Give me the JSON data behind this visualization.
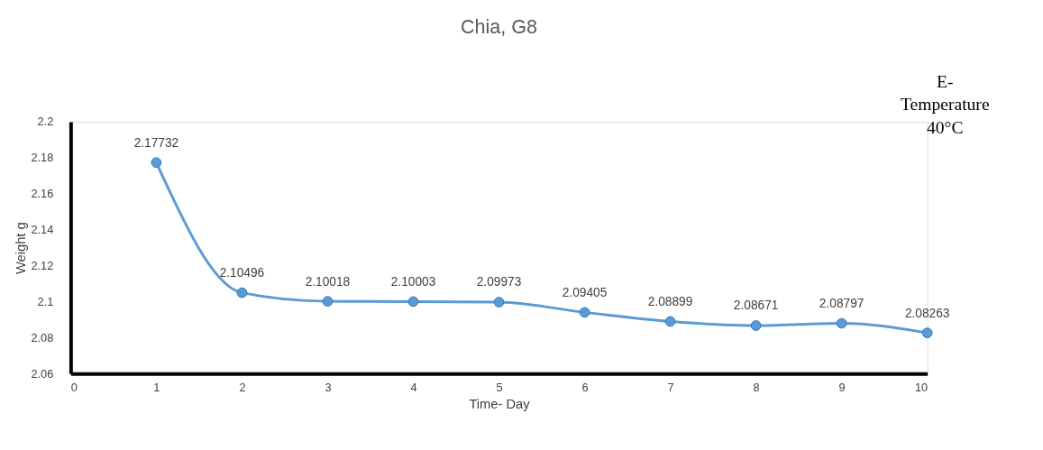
{
  "chart_data": {
    "type": "line",
    "title": "Chia, G8",
    "xlabel": "Time- Day",
    "ylabel": "Weight g",
    "x": [
      1,
      2,
      3,
      4,
      5,
      6,
      7,
      8,
      9,
      10
    ],
    "series": [
      {
        "color": "#5b9bd5",
        "values": [
          2.17732,
          2.10496,
          2.10018,
          2.10003,
          2.09973,
          2.09405,
          2.08899,
          2.08671,
          2.08797,
          2.08263
        ]
      }
    ],
    "xlim": [
      0,
      10
    ],
    "xticks": [
      0,
      1,
      2,
      3,
      4,
      5,
      6,
      7,
      8,
      9,
      10
    ],
    "ylim": [
      2.06,
      2.2
    ],
    "yticks": [
      2.06,
      2.08,
      2.1,
      2.12,
      2.14,
      2.16,
      2.18,
      2.2
    ],
    "data_labels": true,
    "marker": "circle",
    "line_style": "solid",
    "grid": false,
    "annotations": [
      "E-\nTemperature\n40°C"
    ]
  }
}
